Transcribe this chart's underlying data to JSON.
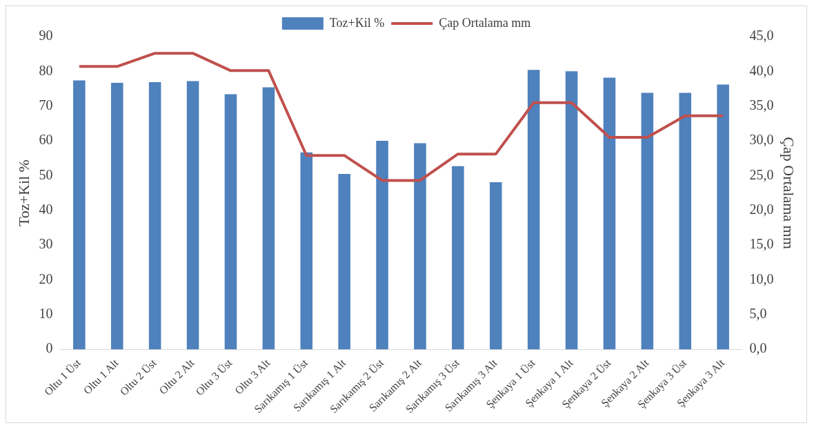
{
  "chart_data": {
    "type": "bar",
    "categories": [
      "Oltu 1 Üst",
      "Oltu 1 Alt",
      "Oltu 2 Üst",
      "Oltu 2 Alt",
      "Oltu 3 Üst",
      "Oltu 3 Alt",
      "Sarıkamış 1 Üst",
      "Sarıkamış 1 Alt",
      "Sarıkamış 2 Üst",
      "Sarıkamış 2 Alt",
      "Sarıkamış 3 Üst",
      "Sarıkamış 3 Alt",
      "Şenkaya 1 Üst",
      "Şenkaya 1 Alt",
      "Şenkaya 2 Üst",
      "Şenkaya 2 Alt",
      "Şenkaya 3 Üst",
      "Şenkaya 3 Alt"
    ],
    "series": [
      {
        "name": "Toz+Kil %",
        "color": "#4f81bd",
        "values": [
          77.4,
          76.7,
          76.9,
          77.2,
          73.4,
          75.4,
          56.7,
          50.5,
          60.0,
          59.3,
          52.7,
          48.1,
          80.4,
          80.0,
          78.2,
          73.8,
          73.8,
          76.2
        ]
      },
      {
        "name": "Çap Ortalama mm",
        "type": "line",
        "axis": "y2",
        "color": "#c0504d",
        "values": [
          40.7,
          40.7,
          42.6,
          42.6,
          40.1,
          40.1,
          27.9,
          27.9,
          24.3,
          24.3,
          28.1,
          28.1,
          35.5,
          35.5,
          30.5,
          30.5,
          33.6,
          33.6
        ]
      }
    ],
    "ylabel": "Toz+Kil %",
    "y2label": "Çap Ortalama mm",
    "ylim": [
      0,
      90
    ],
    "yticks": [
      0,
      10,
      20,
      30,
      40,
      50,
      60,
      70,
      80,
      90
    ],
    "y2lim": [
      0,
      45
    ],
    "y2ticks": [
      {
        "value": 0,
        "label": "0,0"
      },
      {
        "value": 5,
        "label": "5,0"
      },
      {
        "value": 10,
        "label": "10,0"
      },
      {
        "value": 15,
        "label": "15,0"
      },
      {
        "value": 20,
        "label": "20,0"
      },
      {
        "value": 25,
        "label": "25,0"
      },
      {
        "value": 30,
        "label": "30,0"
      },
      {
        "value": 35,
        "label": "35,0"
      },
      {
        "value": 40,
        "label": "40,0"
      },
      {
        "value": 45,
        "label": "45,0"
      }
    ],
    "grid": false,
    "legend": "top"
  }
}
